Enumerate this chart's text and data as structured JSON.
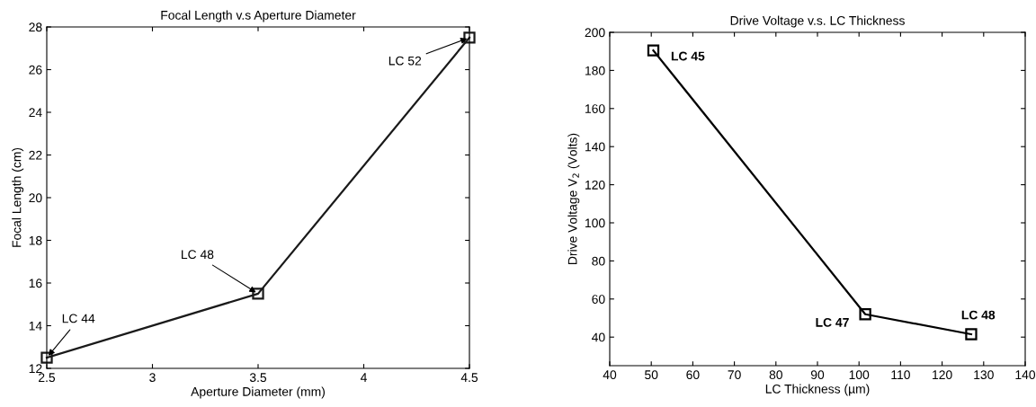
{
  "chart_data": [
    {
      "type": "line",
      "title": "Focal Length v.s Aperture Diameter",
      "xlabel": "Aperture Diameter (mm)",
      "ylabel": "Focal Length (cm)",
      "x": [
        2.5,
        3.5,
        4.5
      ],
      "series": [
        {
          "color": "#1a1a1a",
          "values": [
            12.5,
            15.5,
            27.5
          ]
        }
      ],
      "xlim": [
        2.5,
        4.5
      ],
      "xticks": [
        2.5,
        3,
        3.5,
        4,
        4.5
      ],
      "ylim": [
        12,
        28
      ],
      "yticks": [
        12,
        14,
        16,
        18,
        20,
        22,
        24,
        26,
        28
      ],
      "marker": "square",
      "line_style": "solid",
      "grid": false,
      "legend": false,
      "annotations": [
        {
          "text": "LC 44",
          "x": 2.5,
          "y": 12.5
        },
        {
          "text": "LC 48",
          "x": 3.5,
          "y": 15.5
        },
        {
          "text": "LC 52",
          "x": 4.5,
          "y": 27.5
        }
      ]
    },
    {
      "type": "line",
      "title": "Drive Voltage v.s. LC Thickness",
      "xlabel": "LC Thickness (µm)",
      "ylabel": "Drive Voltage V$_{2}$ (Volts)",
      "x": [
        50.5,
        101.5,
        127
      ],
      "series": [
        {
          "color": "#000000",
          "values": [
            190.5,
            52,
            41.5
          ]
        }
      ],
      "xlim": [
        40,
        140
      ],
      "xticks": [
        40,
        50,
        60,
        70,
        80,
        90,
        100,
        110,
        120,
        130,
        140
      ],
      "ylim": [
        25,
        200
      ],
      "yticks": [
        40,
        60,
        80,
        100,
        120,
        140,
        160,
        180,
        200
      ],
      "marker": "square",
      "line_style": "solid",
      "grid": false,
      "legend": false,
      "annotations": [
        {
          "text": "LC 45",
          "x": 50.5,
          "y": 190.5
        },
        {
          "text": "LC 47",
          "x": 101.5,
          "y": 52
        },
        {
          "text": "LC 48",
          "x": 127,
          "y": 41.5
        }
      ]
    }
  ]
}
